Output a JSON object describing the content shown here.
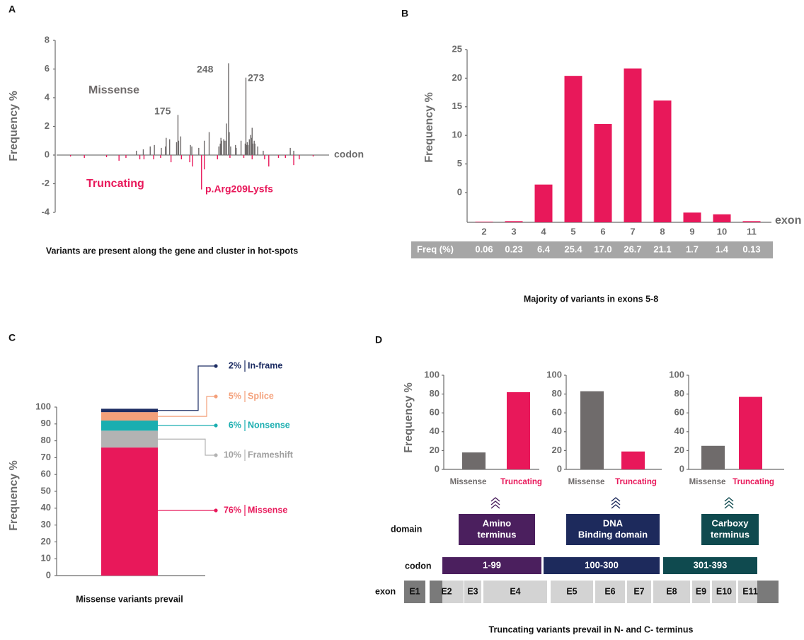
{
  "chart_data": [
    {
      "type": "spike",
      "panel": "A",
      "ylabel": "Frequency %",
      "xlabel": "codon",
      "xlim": [
        0,
        393
      ],
      "ylim": [
        -4,
        8
      ],
      "yticks": [
        8,
        6,
        4,
        2,
        0,
        -2,
        -4
      ],
      "annotations": [
        "175",
        "248",
        "273",
        "p.Arg209Lysfs"
      ],
      "series": [
        {
          "name": "Missense",
          "color": "#6f6b6b",
          "x": [
            115,
            125,
            135,
            141,
            151,
            157,
            158,
            163,
            173,
            175,
            176,
            179,
            193,
            195,
            205,
            213,
            220,
            234,
            236,
            237,
            238,
            241,
            242,
            244,
            245,
            248,
            249,
            251,
            258,
            259,
            266,
            272,
            273,
            274,
            275,
            276,
            278,
            280,
            281,
            282,
            283,
            285,
            286,
            290,
            298,
            337,
            342
          ],
          "values": [
            0.3,
            0.4,
            0.6,
            0.7,
            0.5,
            0.6,
            1.2,
            1.1,
            0.9,
            2.8,
            1.0,
            1.3,
            0.7,
            0.6,
            0.5,
            1.0,
            1.6,
            0.6,
            0.8,
            1.2,
            1.0,
            1.1,
            1.0,
            1.0,
            2.2,
            6.4,
            1.6,
            0.6,
            0.7,
            0.5,
            1.0,
            0.8,
            5.4,
            0.7,
            0.9,
            0.7,
            1.1,
            1.4,
            1.2,
            1.9,
            0.8,
            1.0,
            0.8,
            0.6,
            0.3,
            0.5,
            0.3
          ]
        },
        {
          "name": "Truncating",
          "color": "#e8185a",
          "x": [
            20,
            40,
            72,
            90,
            100,
            120,
            126,
            140,
            150,
            165,
            180,
            192,
            196,
            209,
            213,
            232,
            250,
            270,
            282,
            300,
            306,
            320,
            330,
            342,
            350,
            370
          ],
          "values": [
            -0.1,
            -0.2,
            -0.15,
            -0.4,
            -0.2,
            -0.3,
            -0.3,
            -0.3,
            -0.2,
            -0.5,
            -0.3,
            -0.5,
            -0.8,
            -2.4,
            -1.0,
            -0.3,
            -0.2,
            -0.2,
            -0.3,
            -0.3,
            -0.8,
            -0.2,
            -0.2,
            -0.7,
            -0.3,
            -0.1
          ]
        }
      ],
      "caption": "Variants are present along the gene and cluster in hot-spots"
    },
    {
      "type": "bar",
      "panel": "B",
      "ylabel": "Frequency %",
      "xlabel": "exon",
      "color": "#e8185a",
      "categories": [
        "2",
        "3",
        "4",
        "5",
        "6",
        "7",
        "8",
        "9",
        "10",
        "11"
      ],
      "values": [
        -5.1,
        -5.0,
        1.4,
        20.4,
        12.0,
        21.7,
        16.1,
        -3.5,
        -3.8,
        -5.0
      ],
      "ylim": [
        -5.2,
        25
      ],
      "yticks": [
        25,
        20,
        15,
        10,
        5,
        0
      ],
      "table": {
        "label": "Freq (%)",
        "values": [
          "0.06",
          "0.23",
          "6.4",
          "25.4",
          "17.0",
          "26.7",
          "21.1",
          "1.7",
          "1.4",
          "0.13"
        ]
      },
      "caption": "Majority of variants in exons 5-8"
    },
    {
      "type": "stacked_bar",
      "panel": "C",
      "ylabel": "Frequency %",
      "ylim": [
        0,
        100
      ],
      "yticks": [
        0,
        10,
        20,
        30,
        40,
        50,
        60,
        70,
        80,
        90,
        100
      ],
      "series": [
        {
          "name": "Missense",
          "color": "#e8185a",
          "values": [
            76
          ],
          "value_labels": [
            "76%"
          ]
        },
        {
          "name": "Frameshift",
          "color": "#b3b3b3",
          "values": [
            10
          ],
          "value_labels": [
            "10%"
          ]
        },
        {
          "name": "Nonsense",
          "color": "#1aaeb0",
          "values": [
            6
          ],
          "value_labels": [
            "6%"
          ]
        },
        {
          "name": "Splice",
          "color": "#f4a07a",
          "values": [
            5
          ],
          "value_labels": [
            "5%"
          ]
        },
        {
          "name": "In-frame",
          "color": "#1d2d63",
          "values": [
            2
          ],
          "value_labels": [
            "2%"
          ]
        }
      ],
      "caption": "Missense variants prevail"
    },
    {
      "type": "bar",
      "ylabel": "Frequency %",
      "categories": [
        "Missense",
        "Truncating"
      ],
      "colors": [
        "#6f6b6b",
        "#e8185a"
      ],
      "values": [
        18,
        82
      ],
      "ylim": [
        0,
        100
      ],
      "yticks": [
        0,
        20,
        40,
        60,
        80,
        100
      ]
    },
    {
      "type": "bar",
      "categories": [
        "Missense",
        "Truncating"
      ],
      "colors": [
        "#6f6b6b",
        "#e8185a"
      ],
      "values": [
        83,
        19
      ],
      "ylim": [
        0,
        100
      ],
      "yticks": [
        0,
        20,
        40,
        60,
        80,
        100
      ]
    },
    {
      "type": "bar",
      "categories": [
        "Missense",
        "Truncating"
      ],
      "colors": [
        "#6f6b6b",
        "#e8185a"
      ],
      "values": [
        25,
        77
      ],
      "ylim": [
        0,
        100
      ],
      "yticks": [
        0,
        20,
        40,
        60,
        80,
        100
      ]
    }
  ],
  "diagram": {
    "panel": "D",
    "domain_label": "domain",
    "codon_label": "codon",
    "exon_label": "exon",
    "domains": [
      {
        "label": [
          "Amino",
          "terminus"
        ],
        "codons": "1-99",
        "color": "#4b1f5e"
      },
      {
        "label": [
          "DNA",
          "Binding domain"
        ],
        "codons": "100-300",
        "color": "#1d2a5c"
      },
      {
        "label": [
          "Carboxy",
          "terminus"
        ],
        "codons": "301-393",
        "color": "#0f4a4f"
      }
    ],
    "exons": [
      "E1",
      "E2",
      "E3",
      "E4",
      "E5",
      "E6",
      "E7",
      "E8",
      "E9",
      "E10",
      "E11"
    ],
    "caption": "Truncating variants prevail in N- and C- terminus"
  }
}
